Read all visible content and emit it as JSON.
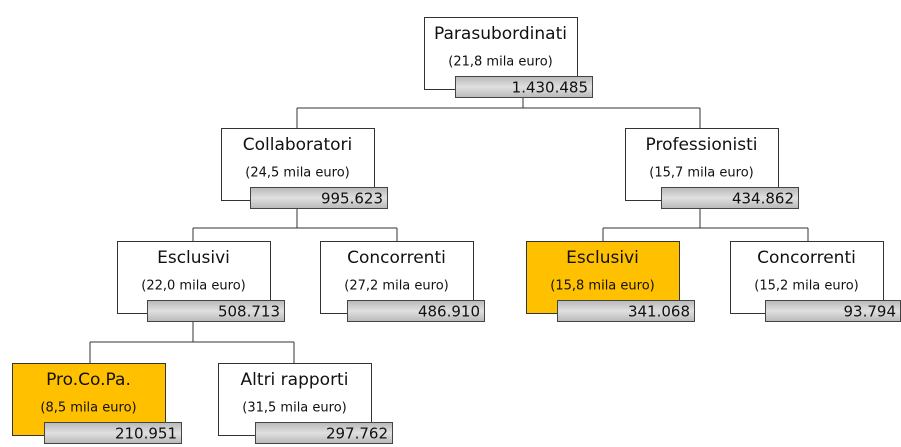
{
  "nodes": [
    {
      "label": "Parasubordinati",
      "note": "(21,8 mila euro)",
      "value": "1.430.485",
      "highlighted": false
    },
    {
      "label": "Collaboratori",
      "note": "(24,5 mila euro)",
      "value": "995.623",
      "highlighted": false
    },
    {
      "label": "Professionisti",
      "note": "(15,7 mila euro)",
      "value": "434.862",
      "highlighted": false
    },
    {
      "label": "Esclusivi",
      "note": "(22,0 mila euro)",
      "value": "508.713",
      "highlighted": false
    },
    {
      "label": "Concorrenti",
      "note": "(27,2 mila euro)",
      "value": "486.910",
      "highlighted": false
    },
    {
      "label": "Esclusivi",
      "note": "(15,8 mila euro)",
      "value": "341.068",
      "highlighted": true
    },
    {
      "label": "Concorrenti",
      "note": "(15,2 mila euro)",
      "value": "93.794",
      "highlighted": false
    },
    {
      "label": "Pro.Co.Pa.",
      "note": "(8,5 mila euro)",
      "value": "210.951",
      "highlighted": true
    },
    {
      "label": "Altri rapporti",
      "note": "(31,5 mila euro)",
      "value": "297.762",
      "highlighted": false
    }
  ]
}
